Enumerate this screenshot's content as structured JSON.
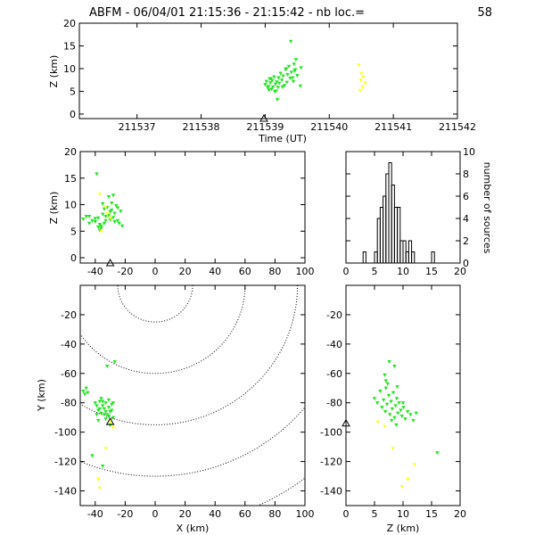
{
  "header": {
    "title": "ABFM - 06/04/01 21:15:36 - 21:15:42 - nb loc.=",
    "count": "58"
  },
  "colors": {
    "early": "#22e622",
    "late": "#ffff22",
    "axis": "#000000"
  },
  "chart_data": [
    {
      "id": "time-height",
      "type": "scatter",
      "xlabel": "Time (UT)",
      "ylabel": "Z (km)",
      "xlim": [
        211536.1,
        211542.0
      ],
      "ylim": [
        -1,
        20
      ],
      "xticks": [
        "211537",
        "211538",
        "211539",
        "211540",
        "211541",
        "211542"
      ],
      "yticks": [
        "0",
        "5",
        "10",
        "15",
        "20"
      ],
      "station": {
        "x": 211538.98,
        "y": -1
      },
      "series": [
        {
          "name": "early",
          "color": "#22e622",
          "points": [
            [
              211539.0,
              6.5
            ],
            [
              211539.02,
              7.2
            ],
            [
              211539.04,
              5.8
            ],
            [
              211539.05,
              6.1
            ],
            [
              211539.07,
              7.8
            ],
            [
              211539.08,
              6.9
            ],
            [
              211539.1,
              5.5
            ],
            [
              211539.11,
              7.4
            ],
            [
              211539.12,
              6.0
            ],
            [
              211539.14,
              8.2
            ],
            [
              211539.15,
              5.0
            ],
            [
              211539.16,
              6.6
            ],
            [
              211539.18,
              7.1
            ],
            [
              211539.19,
              3.2
            ],
            [
              211539.2,
              5.9
            ],
            [
              211539.22,
              6.8
            ],
            [
              211539.24,
              9.0
            ],
            [
              211539.26,
              7.5
            ],
            [
              211539.28,
              8.4
            ],
            [
              211539.3,
              6.3
            ],
            [
              211539.32,
              9.8
            ],
            [
              211539.34,
              7.0
            ],
            [
              211539.35,
              8.7
            ],
            [
              211539.37,
              10.5
            ],
            [
              211539.39,
              7.9
            ],
            [
              211539.41,
              9.2
            ],
            [
              211539.43,
              8.0
            ],
            [
              211539.45,
              11.0
            ],
            [
              211539.46,
              9.5
            ],
            [
              211539.48,
              12.0
            ],
            [
              211539.5,
              8.5
            ],
            [
              211539.4,
              16.0
            ],
            [
              211539.55,
              6.2
            ],
            [
              211539.56,
              10.2
            ],
            [
              211539.44,
              7.2
            ],
            [
              211539.09,
              7.8
            ],
            [
              211539.17,
              5.1
            ],
            [
              211539.27,
              6.0
            ],
            [
              211539.06,
              5.3
            ],
            [
              211539.21,
              8.0
            ],
            [
              211539.33,
              10.0
            ],
            [
              211539.47,
              9.8
            ]
          ]
        },
        {
          "name": "late",
          "color": "#ffff22",
          "points": [
            [
              211540.46,
              10.8
            ],
            [
              211540.5,
              9.0
            ],
            [
              211540.53,
              8.2
            ],
            [
              211540.49,
              7.5
            ],
            [
              211540.56,
              6.8
            ],
            [
              211540.52,
              6.0
            ],
            [
              211540.48,
              5.2
            ]
          ]
        }
      ]
    },
    {
      "id": "x-height",
      "type": "scatter",
      "xlabel": "",
      "ylabel": "Z (km)",
      "xlim": [
        -50,
        100
      ],
      "ylim": [
        -1,
        20
      ],
      "xticks": [
        "-40",
        "-20",
        "0",
        "20",
        "40",
        "60",
        "80",
        "100"
      ],
      "yticks": [
        "0",
        "5",
        "10",
        "15",
        "20"
      ],
      "station": {
        "x": -30,
        "y": -1
      },
      "series": [
        {
          "name": "early",
          "color": "#22e622",
          "points": [
            [
              -48,
              7.3
            ],
            [
              -46,
              7.8
            ],
            [
              -44,
              6.5
            ],
            [
              -42,
              7.0
            ],
            [
              -40,
              6.8
            ],
            [
              -39,
              15.8
            ],
            [
              -38,
              7.5
            ],
            [
              -37,
              5.2
            ],
            [
              -36,
              6.0
            ],
            [
              -35,
              8.2
            ],
            [
              -34,
              6.5
            ],
            [
              -33,
              7.8
            ],
            [
              -32,
              9.5
            ],
            [
              -31,
              8.0
            ],
            [
              -30,
              7.2
            ],
            [
              -29,
              9.0
            ],
            [
              -28,
              7.6
            ],
            [
              -27,
              8.4
            ],
            [
              -26,
              9.8
            ],
            [
              -25,
              7.0
            ],
            [
              -24,
              6.5
            ],
            [
              -23,
              8.8
            ],
            [
              -35,
              10.2
            ],
            [
              -31,
              11.5
            ],
            [
              -28,
              11.8
            ],
            [
              -37,
              6.3
            ],
            [
              -36,
              5.6
            ],
            [
              -33,
              7.0
            ],
            [
              -30,
              8.7
            ],
            [
              -27,
              6.8
            ],
            [
              -44,
              7.8
            ],
            [
              -40,
              7.4
            ],
            [
              -22,
              6.0
            ],
            [
              -38,
              5.8
            ],
            [
              -34,
              9.2
            ],
            [
              -29,
              10.3
            ],
            [
              -25,
              9.4
            ]
          ]
        },
        {
          "name": "late",
          "color": "#ffff22",
          "points": [
            [
              -37,
              12.0
            ],
            [
              -33,
              9.6
            ],
            [
              -32,
              8.3
            ],
            [
              -30,
              7.5
            ],
            [
              -36,
              5.0
            ]
          ]
        }
      ]
    },
    {
      "id": "height-histogram",
      "type": "bar",
      "xlabel": "",
      "ylabel": "number of sources",
      "xlim": [
        0,
        20
      ],
      "ylim": [
        0,
        10
      ],
      "xticks": [
        "0",
        "5",
        "10",
        "15",
        "20"
      ],
      "yticks": [
        "0",
        "2",
        "4",
        "6",
        "8",
        "10"
      ],
      "bin_width": 0.5,
      "bin_starts": [
        3,
        3.5,
        4,
        4.5,
        5,
        5.5,
        6,
        6.5,
        7,
        7.5,
        8,
        8.5,
        9,
        9.5,
        10,
        10.5,
        11,
        11.5,
        12,
        12.5,
        13,
        13.5,
        14,
        14.5,
        15,
        15.5
      ],
      "values": [
        1,
        0,
        0,
        0,
        1,
        4,
        5,
        6,
        8,
        9,
        7,
        5,
        5,
        2,
        2,
        1,
        2,
        1,
        0,
        0,
        0,
        0,
        0,
        0,
        1,
        0
      ]
    },
    {
      "id": "plan-view",
      "type": "scatter",
      "xlabel": "X (km)",
      "ylabel": "Y (km)",
      "xlim": [
        -50,
        100
      ],
      "ylim": [
        -150,
        0
      ],
      "xticks": [
        "-40",
        "-20",
        "0",
        "20",
        "40",
        "60",
        "80",
        "100"
      ],
      "yticks": [
        "-140",
        "-120",
        "-100",
        "-80",
        "-60",
        "-40",
        "-20"
      ],
      "range_rings": {
        "center": [
          0,
          0
        ],
        "radii_km": [
          25,
          60,
          95,
          130,
          165
        ]
      },
      "station": {
        "x": -30,
        "y": -93
      },
      "series": [
        {
          "name": "early",
          "color": "#22e622",
          "points": [
            [
              -48,
              -72
            ],
            [
              -47,
              -74
            ],
            [
              -46,
              -70
            ],
            [
              -45,
              -73
            ],
            [
              -40,
              -80
            ],
            [
              -39,
              -82
            ],
            [
              -38,
              -85
            ],
            [
              -37,
              -79
            ],
            [
              -36,
              -87
            ],
            [
              -35,
              -82
            ],
            [
              -34,
              -84
            ],
            [
              -33,
              -80
            ],
            [
              -32,
              -88
            ],
            [
              -31,
              -83
            ],
            [
              -30,
              -86
            ],
            [
              -29,
              -81
            ],
            [
              -28,
              -90
            ],
            [
              -36,
              -77
            ],
            [
              -33,
              -91
            ],
            [
              -31,
              -78
            ],
            [
              -30,
              -95
            ],
            [
              -34,
              -88
            ],
            [
              -37,
              -84
            ],
            [
              -29,
              -85
            ],
            [
              -27,
              -52
            ],
            [
              -32,
              -55
            ],
            [
              -42,
              -116
            ],
            [
              -35,
              -123
            ],
            [
              -38,
              -92
            ],
            [
              -39,
              -88
            ],
            [
              -35,
              -79
            ],
            [
              -33,
              -86
            ],
            [
              -31,
              -89
            ],
            [
              -28,
              -80
            ]
          ]
        },
        {
          "name": "late",
          "color": "#ffff22",
          "points": [
            [
              -38,
              -132
            ],
            [
              -37,
              -138
            ],
            [
              -33,
              -111
            ],
            [
              -28,
              -97
            ],
            [
              -30,
              -93
            ]
          ]
        }
      ]
    },
    {
      "id": "height-y",
      "type": "scatter",
      "xlabel": "Z (km)",
      "ylabel": "",
      "xlim": [
        0,
        20
      ],
      "ylim": [
        -150,
        0
      ],
      "xticks": [
        "0",
        "5",
        "10",
        "15",
        "20"
      ],
      "yticks": [
        "-140",
        "-120",
        "-100",
        "-80",
        "-60",
        "-40",
        "-20"
      ],
      "station": {
        "x": 0,
        "y": -94
      },
      "series": [
        {
          "name": "early",
          "color": "#22e622",
          "points": [
            [
              5.0,
              -77
            ],
            [
              5.5,
              -80
            ],
            [
              6.0,
              -72
            ],
            [
              6.3,
              -83
            ],
            [
              6.6,
              -78
            ],
            [
              6.9,
              -86
            ],
            [
              7.0,
              -70
            ],
            [
              7.2,
              -81
            ],
            [
              7.5,
              -75
            ],
            [
              7.7,
              -88
            ],
            [
              7.9,
              -79
            ],
            [
              8.1,
              -84
            ],
            [
              8.3,
              -73
            ],
            [
              8.5,
              -90
            ],
            [
              8.7,
              -82
            ],
            [
              8.9,
              -77
            ],
            [
              9.1,
              -87
            ],
            [
              9.3,
              -80
            ],
            [
              9.6,
              -85
            ],
            [
              9.8,
              -89
            ],
            [
              10.1,
              -83
            ],
            [
              10.4,
              -91
            ],
            [
              10.8,
              -86
            ],
            [
              11.3,
              -88
            ],
            [
              11.8,
              -92
            ],
            [
              12.3,
              -87
            ],
            [
              7.0,
              -65
            ],
            [
              7.6,
              -52
            ],
            [
              8.5,
              -55
            ],
            [
              6.8,
              -61
            ],
            [
              9.0,
              -69
            ],
            [
              16.0,
              -114
            ],
            [
              7.3,
              -67
            ],
            [
              8.0,
              -92
            ],
            [
              8.8,
              -95
            ],
            [
              10.0,
              -80
            ]
          ]
        },
        {
          "name": "late",
          "color": "#ffff22",
          "points": [
            [
              5.6,
              -93
            ],
            [
              6.8,
              -96
            ],
            [
              8.2,
              -111
            ],
            [
              9.8,
              -137
            ],
            [
              10.8,
              -132
            ],
            [
              12.0,
              -122
            ]
          ]
        }
      ]
    }
  ]
}
